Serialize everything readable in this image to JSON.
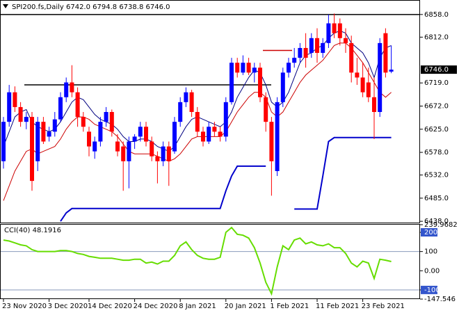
{
  "chart_data": [
    {
      "type": "candlestick",
      "title": "SPI200.fs,Daily  6742.0 6794.8 6738.8 6746.0",
      "categories": [
        "23 Nov 2020",
        null,
        null,
        null,
        null,
        null,
        null,
        null,
        "3 Dec 2020",
        null,
        null,
        null,
        null,
        null,
        null,
        "14 Dec 2020",
        null,
        null,
        null,
        null,
        null,
        null,
        null,
        "24 Dec 2020",
        null,
        null,
        null,
        null,
        null,
        null,
        null,
        "8 Jan 2021",
        null,
        null,
        null,
        null,
        null,
        null,
        null,
        "20 Jan 2021",
        null,
        null,
        null,
        null,
        null,
        null,
        null,
        "1 Feb 2021",
        null,
        null,
        null,
        null,
        null,
        null,
        null,
        "11 Feb 2021",
        null,
        null,
        null,
        null,
        null,
        null,
        null,
        "23 Feb 2021",
        null,
        null,
        null,
        null,
        null
      ],
      "ohlc": [
        [
          6560,
          6650,
          6545,
          6640
        ],
        [
          6640,
          6715,
          6630,
          6700
        ],
        [
          6700,
          6712,
          6660,
          6670
        ],
        [
          6670,
          6680,
          6630,
          6640
        ],
        [
          6640,
          6660,
          6625,
          6650
        ],
        [
          6650,
          6660,
          6500,
          6520
        ],
        [
          6560,
          6650,
          6540,
          6640
        ],
        [
          6640,
          6650,
          6595,
          6600
        ],
        [
          6610,
          6630,
          6600,
          6620
        ],
        [
          6620,
          6660,
          6610,
          6645
        ],
        [
          6645,
          6700,
          6640,
          6690
        ],
        [
          6690,
          6730,
          6680,
          6720
        ],
        [
          6720,
          6755,
          6690,
          6700
        ],
        [
          6700,
          6710,
          6630,
          6650
        ],
        [
          6650,
          6660,
          6620,
          6630
        ],
        [
          6620,
          6630,
          6570,
          6590
        ],
        [
          6580,
          6610,
          6565,
          6600
        ],
        [
          6600,
          6650,
          6590,
          6640
        ],
        [
          6640,
          6670,
          6630,
          6660
        ],
        [
          6660,
          6665,
          6610,
          6620
        ],
        [
          6600,
          6615,
          6570,
          6580
        ],
        [
          6590,
          6600,
          6500,
          6560
        ],
        [
          6560,
          6610,
          6505,
          6600
        ],
        [
          6600,
          6615,
          6585,
          6610
        ],
        [
          6610,
          6640,
          6600,
          6630
        ],
        [
          6630,
          6640,
          6590,
          6600
        ],
        [
          6600,
          6610,
          6560,
          6570
        ],
        [
          6570,
          6580,
          6515,
          6560
        ],
        [
          6560,
          6600,
          6550,
          6590
        ],
        [
          6590,
          6600,
          6510,
          6560
        ],
        [
          6580,
          6650,
          6575,
          6640
        ],
        [
          6640,
          6690,
          6630,
          6680
        ],
        [
          6680,
          6710,
          6670,
          6700
        ],
        [
          6700,
          6705,
          6650,
          6660
        ],
        [
          6660,
          6670,
          6610,
          6620
        ],
        [
          6620,
          6630,
          6590,
          6600
        ],
        [
          6600,
          6640,
          6595,
          6630
        ],
        [
          6630,
          6640,
          6610,
          6620
        ],
        [
          6620,
          6630,
          6600,
          6610
        ],
        [
          6610,
          6690,
          6600,
          6680
        ],
        [
          6680,
          6770,
          6675,
          6760
        ],
        [
          6760,
          6770,
          6730,
          6740
        ],
        [
          6740,
          6775,
          6735,
          6760
        ],
        [
          6760,
          6770,
          6735,
          6740
        ],
        [
          6740,
          6760,
          6720,
          6750
        ],
        [
          6750,
          6760,
          6680,
          6690
        ],
        [
          6690,
          6700,
          6620,
          6640
        ],
        [
          6640,
          6650,
          6490,
          6560
        ],
        [
          6540,
          6690,
          6530,
          6680
        ],
        [
          6680,
          6750,
          6670,
          6740
        ],
        [
          6740,
          6770,
          6730,
          6760
        ],
        [
          6760,
          6790,
          6750,
          6770
        ],
        [
          6770,
          6800,
          6760,
          6790
        ],
        [
          6790,
          6820,
          6750,
          6770
        ],
        [
          6780,
          6820,
          6770,
          6810
        ],
        [
          6810,
          6830,
          6760,
          6780
        ],
        [
          6780,
          6810,
          6770,
          6800
        ],
        [
          6800,
          6858,
          6790,
          6840
        ],
        [
          6840,
          6860,
          6810,
          6820
        ],
        [
          6840,
          6850,
          6795,
          6810
        ],
        [
          6810,
          6830,
          6780,
          6800
        ],
        [
          6800,
          6815,
          6720,
          6740
        ],
        [
          6740,
          6770,
          6715,
          6730
        ],
        [
          6730,
          6760,
          6690,
          6700
        ],
        [
          6720,
          6750,
          6680,
          6690
        ],
        [
          6690,
          6730,
          6605,
          6660
        ],
        [
          6660,
          6810,
          6650,
          6800
        ],
        [
          6820,
          6830,
          6730,
          6740
        ],
        [
          6742,
          6794.8,
          6738.8,
          6746
        ]
      ],
      "up_color": "#0000ff",
      "down_color": "#ff0000",
      "series": [
        {
          "color": "#000080",
          "values": [
            6590,
            6620,
            6650,
            6660,
            6665,
            6640,
            6630,
            6625,
            6620,
            6625,
            6640,
            6660,
            6680,
            6690,
            6685,
            6670,
            6655,
            6645,
            6640,
            6635,
            6625,
            6610,
            6600,
            6600,
            6605,
            6605,
            6600,
            6590,
            6585,
            6580,
            6590,
            6610,
            6630,
            6645,
            6650,
            6645,
            6640,
            6635,
            6630,
            6640,
            6660,
            6690,
            6710,
            6730,
            6745,
            6740,
            6715,
            6680,
            6670,
            6680,
            6700,
            6730,
            6760,
            6775,
            6780,
            6790,
            6795,
            6810,
            6820,
            6825,
            6820,
            6800,
            6790,
            6780,
            6760,
            6730,
            6770,
            6790,
            6795
          ]
        },
        {
          "color": "#cc0000",
          "values": [
            6480,
            6510,
            6540,
            6560,
            6580,
            6585,
            6575,
            6580,
            6585,
            6590,
            6605,
            6625,
            6640,
            6650,
            6650,
            6645,
            6635,
            6630,
            6625,
            6620,
            6610,
            6595,
            6580,
            6575,
            6575,
            6575,
            6575,
            6570,
            6565,
            6560,
            6565,
            6575,
            6590,
            6605,
            6610,
            6610,
            6610,
            6610,
            6610,
            6620,
            6640,
            6660,
            6675,
            6690,
            6700,
            6700,
            6690,
            6660,
            6650,
            6660,
            6680,
            6700,
            6720,
            6735,
            6745,
            6755,
            6765,
            6780,
            6795,
            6800,
            6800,
            6790,
            6775,
            6760,
            6740,
            6720,
            6700,
            6690,
            6700
          ]
        },
        {
          "color": "#0000cc",
          "values": [
            null,
            null,
            null,
            null,
            null,
            null,
            null,
            null,
            null,
            null,
            6438,
            6455,
            6464,
            6464,
            6464,
            6464,
            6464,
            6464,
            6464,
            6464,
            6464,
            6464,
            6464,
            6464,
            6464,
            6464,
            6464,
            6464,
            6464,
            6464,
            6464,
            6464,
            6464,
            6464,
            6464,
            6464,
            6464,
            6464,
            6464,
            6500,
            6530,
            6550,
            6550,
            6550,
            6550,
            6550,
            6550,
            null,
            null,
            null,
            null,
            6463,
            6463,
            6463,
            6463,
            6463,
            6530,
            6600,
            6608,
            6608,
            6608,
            6608,
            6608,
            6608,
            6608,
            6608,
            6608,
            6608,
            6608
          ]
        }
      ],
      "levels": [
        {
          "value": 6858,
          "color": "#000000"
        },
        {
          "value": 6715,
          "color": "#000000"
        },
        {
          "value": 6785,
          "color": "#cc0000"
        }
      ],
      "price_label": {
        "value": 6746,
        "label": "6746.0"
      },
      "ylim": [
        6434,
        6886
      ],
      "yticks": [
        {
          "value": 6858,
          "label": "6858.0"
        },
        {
          "value": 6812,
          "label": "6812.0"
        },
        {
          "value": 6719,
          "label": "6719.0"
        },
        {
          "value": 6672,
          "label": "6672.0"
        },
        {
          "value": 6625,
          "label": "6625.0"
        },
        {
          "value": 6578,
          "label": "6578.0"
        },
        {
          "value": 6532,
          "label": "6532.0"
        },
        {
          "value": 6485,
          "label": "6485.0"
        },
        {
          "value": 6438,
          "label": "6438.0"
        }
      ]
    },
    {
      "type": "line",
      "title": "CCI(40) 48.1916",
      "color": "#66dd00",
      "values": [
        160,
        155,
        145,
        135,
        130,
        110,
        100,
        100,
        100,
        100,
        105,
        105,
        100,
        90,
        85,
        75,
        70,
        65,
        65,
        65,
        60,
        55,
        55,
        60,
        60,
        40,
        45,
        35,
        50,
        50,
        80,
        130,
        150,
        110,
        80,
        65,
        60,
        60,
        70,
        200,
        225,
        190,
        185,
        170,
        120,
        40,
        -60,
        -120,
        20,
        130,
        110,
        160,
        170,
        140,
        150,
        135,
        130,
        140,
        120,
        120,
        90,
        40,
        20,
        50,
        40,
        -40,
        60,
        55,
        48.1916
      ],
      "levels": [
        100,
        -100
      ],
      "ylim": [
        -147.546,
        239.9682
      ],
      "yticks": [
        239.9682,
        200,
        100,
        {
          "value": 0,
          "label": "0.00"
        },
        -100,
        -147.546
      ]
    }
  ]
}
